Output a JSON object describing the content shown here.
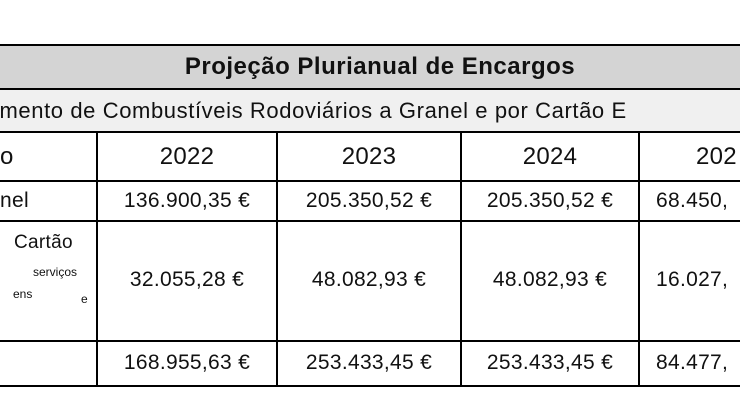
{
  "title": "Projeção Plurianual de Encargos",
  "subtitle": "imento de Combustíveis Rodoviários a Granel e por Cartão E",
  "header": {
    "label_fragment": "o",
    "years": [
      "2022",
      "2023",
      "2024",
      "202"
    ]
  },
  "rows": [
    {
      "label": "nel",
      "values": [
        "136.900,35 €",
        "205.350,52 €",
        "205.350,52 €",
        "68.450,"
      ]
    },
    {
      "label_line1": "Cartão",
      "label_line2": "serviços",
      "label_line3_a": "ens",
      "label_line3_b": "e",
      "values": [
        "32.055,28 €",
        "48.082,93 €",
        "48.082,93 €",
        "16.027,"
      ]
    },
    {
      "label": "",
      "values": [
        "168.955,63 €",
        "253.433,45 €",
        "253.433,45 €",
        "84.477,"
      ]
    }
  ]
}
